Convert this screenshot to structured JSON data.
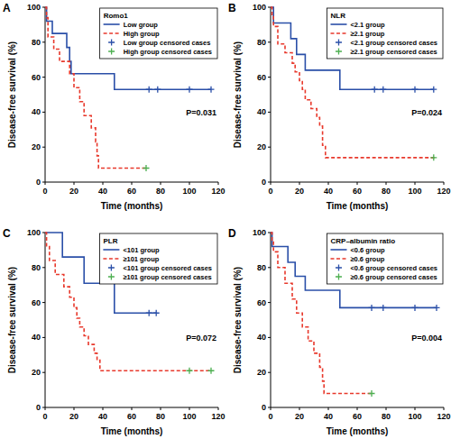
{
  "chart_data": [
    {
      "type": "line",
      "title": "A",
      "legend_title": "Romo1",
      "x_label": "Time (months)",
      "y_label": "Disease-free survival (%)",
      "annotation": "P=0.031",
      "legend": "top-right",
      "xlim": [
        0,
        120
      ],
      "xticks": [
        0,
        20,
        40,
        60,
        80,
        100,
        120
      ],
      "ylim": [
        0,
        100
      ],
      "yticks": [
        0,
        20,
        40,
        60,
        80,
        100
      ],
      "series": [
        {
          "name": "Low group",
          "type": "step",
          "color": "#2a4fa8",
          "line_style": "solid",
          "x": [
            0,
            1,
            5,
            15,
            17,
            18,
            48,
            115
          ],
          "values": [
            100,
            92,
            85,
            77,
            69,
            62,
            53,
            53
          ]
        },
        {
          "name": "High group",
          "type": "step",
          "color": "#e8392c",
          "line_style": "dashed",
          "x": [
            0,
            1,
            2,
            6,
            10,
            17,
            20,
            24,
            27,
            32,
            35,
            36,
            37,
            70
          ],
          "values": [
            100,
            94,
            83,
            76,
            69,
            62,
            54,
            46,
            38,
            31,
            23,
            15,
            8,
            8
          ]
        },
        {
          "name": "Low group censored cases",
          "type": "scatter",
          "marker": "plus",
          "color": "#2a4fa8",
          "x": [
            72,
            78,
            100,
            115
          ],
          "values": [
            53,
            53,
            53,
            53
          ]
        },
        {
          "name": "High group censored cases",
          "type": "scatter",
          "marker": "plus",
          "color": "#4caf50",
          "x": [
            70
          ],
          "values": [
            8
          ]
        }
      ]
    },
    {
      "type": "line",
      "title": "B",
      "legend_title": "NLR",
      "x_label": "Time (months)",
      "y_label": "Disease-free survival (%)",
      "annotation": "P=0.024",
      "legend": "top-right",
      "xlim": [
        0,
        120
      ],
      "xticks": [
        0,
        20,
        40,
        60,
        80,
        100,
        120
      ],
      "ylim": [
        0,
        100
      ],
      "yticks": [
        0,
        20,
        40,
        60,
        80,
        100
      ],
      "series": [
        {
          "name": "<2.1 group",
          "type": "step",
          "color": "#2a4fa8",
          "line_style": "solid",
          "x": [
            0,
            2,
            14,
            18,
            24,
            48,
            113
          ],
          "values": [
            100,
            91,
            82,
            73,
            64,
            53,
            53
          ]
        },
        {
          "name": "≥2.1 group",
          "type": "step",
          "color": "#e8392c",
          "line_style": "dashed",
          "x": [
            0,
            1,
            2,
            5,
            10,
            15,
            17,
            20,
            22,
            24,
            28,
            32,
            34,
            36,
            38,
            115
          ],
          "values": [
            100,
            95,
            89,
            79,
            74,
            68,
            63,
            58,
            53,
            47,
            42,
            37,
            32,
            21,
            14,
            14
          ]
        },
        {
          "name": "<2.1 group censored cases",
          "type": "scatter",
          "marker": "plus",
          "color": "#2a4fa8",
          "x": [
            72,
            78,
            100,
            113
          ],
          "values": [
            53,
            53,
            53,
            53
          ]
        },
        {
          "name": "≥2.1 group censored cases",
          "type": "scatter",
          "marker": "plus",
          "color": "#4caf50",
          "x": [
            113
          ],
          "values": [
            14
          ]
        }
      ]
    },
    {
      "type": "line",
      "title": "C",
      "legend_title": "PLR",
      "x_label": "Time (months)",
      "y_label": "Disease-free survival (%)",
      "annotation": "P=0.072",
      "legend": "top-right",
      "xlim": [
        0,
        120
      ],
      "xticks": [
        0,
        20,
        40,
        60,
        80,
        100,
        120
      ],
      "ylim": [
        0,
        100
      ],
      "yticks": [
        0,
        20,
        40,
        60,
        80,
        100
      ],
      "series": [
        {
          "name": "<101 group",
          "type": "step",
          "color": "#2a4fa8",
          "line_style": "solid",
          "x": [
            0,
            12,
            27,
            48,
            77
          ],
          "values": [
            100,
            86,
            71,
            54,
            54
          ]
        },
        {
          "name": "≥101 group",
          "type": "step",
          "color": "#e8392c",
          "line_style": "dashed",
          "x": [
            0,
            1,
            3,
            7,
            13,
            17,
            20,
            22,
            24,
            27,
            30,
            34,
            36,
            38,
            115
          ],
          "values": [
            100,
            92,
            84,
            76,
            69,
            63,
            57,
            51,
            46,
            41,
            36,
            31,
            27,
            21,
            21
          ]
        },
        {
          "name": "<101 group censored cases",
          "type": "scatter",
          "marker": "plus",
          "color": "#2a4fa8",
          "x": [
            72,
            77
          ],
          "values": [
            54,
            54
          ]
        },
        {
          "name": "≥101 group censored cases",
          "type": "scatter",
          "marker": "plus",
          "color": "#4caf50",
          "x": [
            100,
            115
          ],
          "values": [
            21,
            21
          ]
        }
      ]
    },
    {
      "type": "line",
      "title": "D",
      "legend_title": "CRP–albumin ratio",
      "x_label": "Time (months)",
      "y_label": "Disease-free survival (%)",
      "annotation": "P=0.004",
      "legend": "top-right",
      "xlim": [
        0,
        120
      ],
      "xticks": [
        0,
        20,
        40,
        60,
        80,
        100,
        120
      ],
      "ylim": [
        0,
        100
      ],
      "yticks": [
        0,
        20,
        40,
        60,
        80,
        100
      ],
      "series": [
        {
          "name": "<0.6 group",
          "type": "step",
          "color": "#2a4fa8",
          "line_style": "solid",
          "x": [
            0,
            1,
            12,
            17,
            24,
            48,
            115
          ],
          "values": [
            100,
            92,
            83,
            75,
            67,
            57,
            57
          ]
        },
        {
          "name": "≥0.6 group",
          "type": "step",
          "color": "#e8392c",
          "line_style": "dashed",
          "x": [
            0,
            1,
            2,
            5,
            10,
            15,
            18,
            22,
            26,
            30,
            34,
            36,
            37,
            70
          ],
          "values": [
            100,
            95,
            89,
            80,
            71,
            62,
            54,
            46,
            38,
            31,
            23,
            15,
            8,
            8
          ]
        },
        {
          "name": "<0.6 group censored cases",
          "type": "scatter",
          "marker": "plus",
          "color": "#2a4fa8",
          "x": [
            70,
            78,
            100,
            115
          ],
          "values": [
            57,
            57,
            57,
            57
          ]
        },
        {
          "name": "≥0.6 group censored cases",
          "type": "scatter",
          "marker": "plus",
          "color": "#4caf50",
          "x": [
            70
          ],
          "values": [
            8
          ]
        }
      ]
    }
  ]
}
